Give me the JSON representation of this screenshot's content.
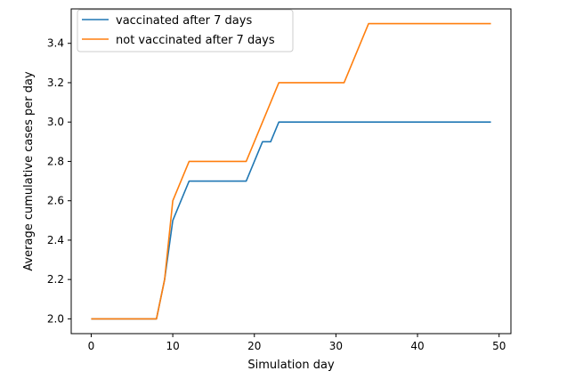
{
  "chart_data": {
    "type": "line",
    "xlabel": "Simulation day",
    "ylabel": "Average cumulative cases per day",
    "xlim": [
      -2.45,
      51.45
    ],
    "ylim": [
      1.925,
      3.575
    ],
    "xticks": [
      0,
      10,
      20,
      30,
      40,
      50
    ],
    "yticks": [
      2.0,
      2.2,
      2.4,
      2.6,
      2.8,
      3.0,
      3.2,
      3.4
    ],
    "legend_position": "top-left",
    "grid": false,
    "series": [
      {
        "name": "vaccinated after 7 days",
        "color": "#1f77b4",
        "x": [
          0,
          1,
          2,
          3,
          4,
          5,
          6,
          7,
          8,
          9,
          10,
          11,
          12,
          13,
          14,
          15,
          16,
          17,
          18,
          19,
          20,
          21,
          22,
          23,
          24,
          25,
          26,
          27,
          28,
          29,
          30,
          31,
          32,
          33,
          34,
          35,
          36,
          37,
          38,
          39,
          40,
          41,
          42,
          43,
          44,
          45,
          46,
          47,
          48,
          49
        ],
        "y": [
          2.0,
          2.0,
          2.0,
          2.0,
          2.0,
          2.0,
          2.0,
          2.0,
          2.0,
          2.2,
          2.5,
          2.6,
          2.7,
          2.7,
          2.7,
          2.7,
          2.7,
          2.7,
          2.7,
          2.7,
          2.8,
          2.9,
          2.9,
          3.0,
          3.0,
          3.0,
          3.0,
          3.0,
          3.0,
          3.0,
          3.0,
          3.0,
          3.0,
          3.0,
          3.0,
          3.0,
          3.0,
          3.0,
          3.0,
          3.0,
          3.0,
          3.0,
          3.0,
          3.0,
          3.0,
          3.0,
          3.0,
          3.0,
          3.0,
          3.0
        ]
      },
      {
        "name": "not vaccinated after 7 days",
        "color": "#ff7f0e",
        "x": [
          0,
          1,
          2,
          3,
          4,
          5,
          6,
          7,
          8,
          9,
          10,
          11,
          12,
          13,
          14,
          15,
          16,
          17,
          18,
          19,
          20,
          21,
          22,
          23,
          24,
          25,
          26,
          27,
          28,
          29,
          30,
          31,
          32,
          33,
          34,
          35,
          36,
          37,
          38,
          39,
          40,
          41,
          42,
          43,
          44,
          45,
          46,
          47,
          48,
          49
        ],
        "y": [
          2.0,
          2.0,
          2.0,
          2.0,
          2.0,
          2.0,
          2.0,
          2.0,
          2.0,
          2.2,
          2.6,
          2.7,
          2.8,
          2.8,
          2.8,
          2.8,
          2.8,
          2.8,
          2.8,
          2.8,
          2.9,
          3.0,
          3.1,
          3.2,
          3.2,
          3.2,
          3.2,
          3.2,
          3.2,
          3.2,
          3.2,
          3.2,
          3.3,
          3.4,
          3.5,
          3.5,
          3.5,
          3.5,
          3.5,
          3.5,
          3.5,
          3.5,
          3.5,
          3.5,
          3.5,
          3.5,
          3.5,
          3.5,
          3.5,
          3.5
        ]
      }
    ]
  }
}
